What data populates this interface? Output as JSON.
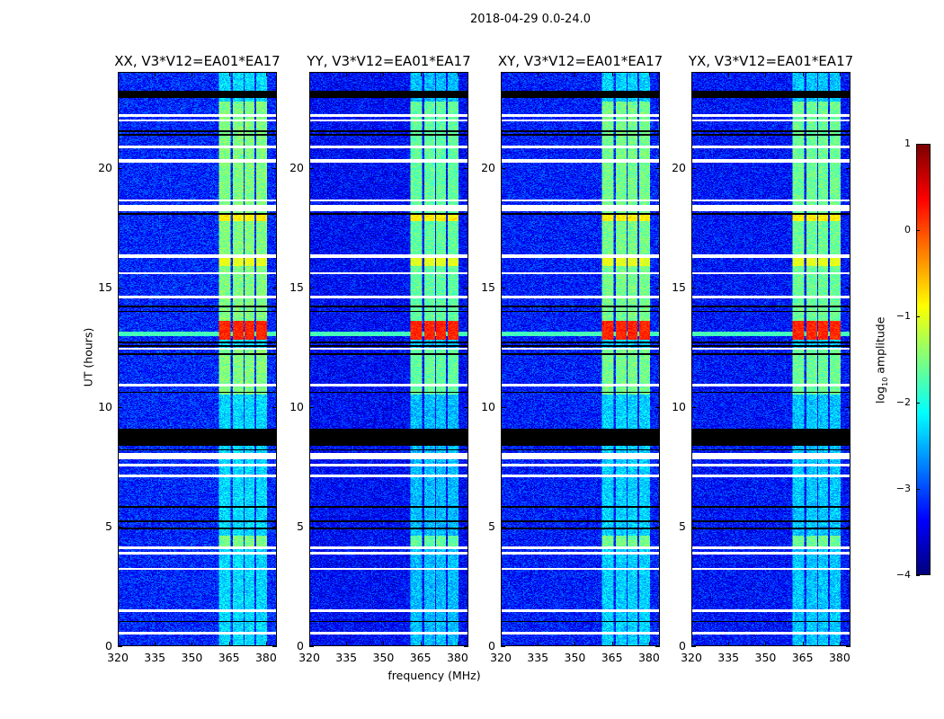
{
  "chart_data": {
    "type": "heatmap",
    "title": "2018-04-29 0.0-24.0",
    "xlabel": "frequency (MHz)",
    "ylabel": "UT (hours)",
    "xlim": [
      320,
      384.4
    ],
    "ylim": [
      0,
      24
    ],
    "xticks": [
      320,
      335,
      350,
      365,
      380
    ],
    "yticks": [
      0,
      5,
      10,
      15,
      20
    ],
    "panels": [
      {
        "title": "XX, V3*V12=EA01*EA17",
        "gain": 0.0
      },
      {
        "title": "YY, V3*V12=EA01*EA17",
        "gain": -0.15
      },
      {
        "title": "XY, V3*V12=EA01*EA17",
        "gain": -0.05
      },
      {
        "title": "YX, V3*V12=EA01*EA17",
        "gain": -0.1
      }
    ],
    "rfi_channels_mhz": [
      [
        361,
        365.8
      ],
      [
        366.6,
        371
      ],
      [
        371.5,
        375.6
      ],
      [
        376.3,
        380.7
      ]
    ],
    "flagged_white_hours": [
      [
        20.25,
        20.4
      ],
      [
        18.2,
        18.45
      ],
      [
        22.15,
        22.25
      ],
      [
        21.95,
        22.05
      ],
      [
        20.85,
        20.95
      ],
      [
        18.6,
        18.7
      ],
      [
        16.25,
        16.4
      ],
      [
        15.55,
        15.65
      ],
      [
        14.55,
        14.65
      ],
      [
        12.4,
        12.48
      ],
      [
        10.85,
        10.95
      ],
      [
        7.8,
        8.05
      ],
      [
        7.5,
        7.6
      ],
      [
        7.05,
        7.15
      ],
      [
        4.05,
        4.15
      ],
      [
        3.8,
        3.9
      ],
      [
        3.15,
        3.25
      ],
      [
        1.4,
        1.5
      ],
      [
        0.45,
        0.55
      ]
    ],
    "flagged_black_hours": [
      [
        22.95,
        23.25
      ],
      [
        21.52,
        21.58
      ],
      [
        21.37,
        21.43
      ],
      [
        18.05,
        18.12
      ],
      [
        14.17,
        14.23
      ],
      [
        13.97,
        14.03
      ],
      [
        12.67,
        12.73
      ],
      [
        12.52,
        12.58
      ],
      [
        12.17,
        12.23
      ],
      [
        10.57,
        10.63
      ],
      [
        9.02,
        9.08
      ],
      [
        8.35,
        9.0
      ],
      [
        8.17,
        8.23
      ],
      [
        5.77,
        5.83
      ],
      [
        5.17,
        5.23
      ],
      [
        4.87,
        4.93
      ],
      [
        0.97,
        1.03
      ]
    ],
    "rfi_active_hours": [
      [
        10.5,
        12.4
      ],
      [
        13.3,
        22.8
      ],
      [
        4.1,
        4.6
      ]
    ],
    "bright_events": [
      {
        "hours": [
          12.8,
          13.6
        ],
        "log_amp": 0.2
      },
      {
        "hours": [
          15.9,
          16.3
        ],
        "log_amp": -1.0
      },
      {
        "hours": [
          17.8,
          18.1
        ],
        "log_amp": -0.8
      }
    ],
    "broadband_event": {
      "hours": [
        12.95,
        13.15
      ],
      "log_amp": -1.8
    },
    "baseline_log_amp": -3.2,
    "colorbar": {
      "label": "log10 amplitude",
      "label_main": "log",
      "label_sub": "10",
      "label_rest": " amplitude",
      "range": [
        -4,
        1
      ],
      "ticks": [
        -4,
        -3,
        -2,
        -1,
        0,
        1
      ],
      "tick_labels": [
        "−4",
        "−3",
        "−2",
        "−1",
        "0",
        "1"
      ],
      "colormap": "jet"
    }
  }
}
